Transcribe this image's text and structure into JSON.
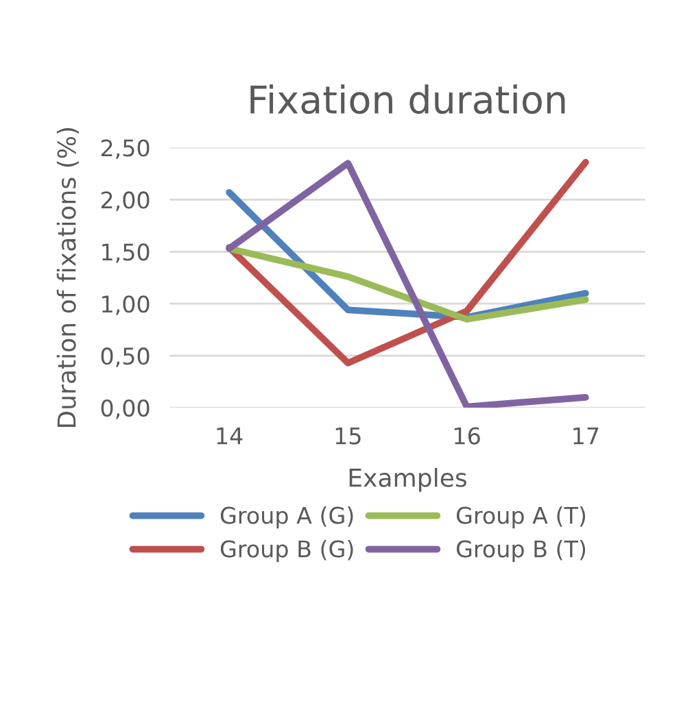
{
  "chart_data": {
    "type": "line",
    "title": "Fixation duration",
    "xlabel": "Examples",
    "ylabel": "Duration of fixations (%)",
    "categories": [
      "14",
      "15",
      "16",
      "17"
    ],
    "series": [
      {
        "name": "Group A (G)",
        "color": "#4f81bd",
        "values": [
          2.07,
          0.94,
          0.87,
          1.1
        ]
      },
      {
        "name": "Group B (G)",
        "color": "#c0504d",
        "values": [
          1.54,
          0.43,
          0.93,
          2.36
        ]
      },
      {
        "name": "Group A (T)",
        "color": "#9bbb59",
        "values": [
          1.53,
          1.26,
          0.85,
          1.04
        ]
      },
      {
        "name": "Group B (T)",
        "color": "#8064a2",
        "values": [
          1.53,
          2.35,
          0.01,
          0.1
        ]
      }
    ],
    "ylim": [
      0,
      2.5
    ],
    "yticks": [
      {
        "value": 0,
        "label": "0,00"
      },
      {
        "value": 0.5,
        "label": "0,50"
      },
      {
        "value": 1,
        "label": "1,00"
      },
      {
        "value": 1.5,
        "label": "1,50"
      },
      {
        "value": 2,
        "label": "2,00"
      },
      {
        "value": 2.5,
        "label": "2,50"
      }
    ],
    "grid": "y",
    "legend": "bottom",
    "marker": "none",
    "line_style": "solid"
  }
}
